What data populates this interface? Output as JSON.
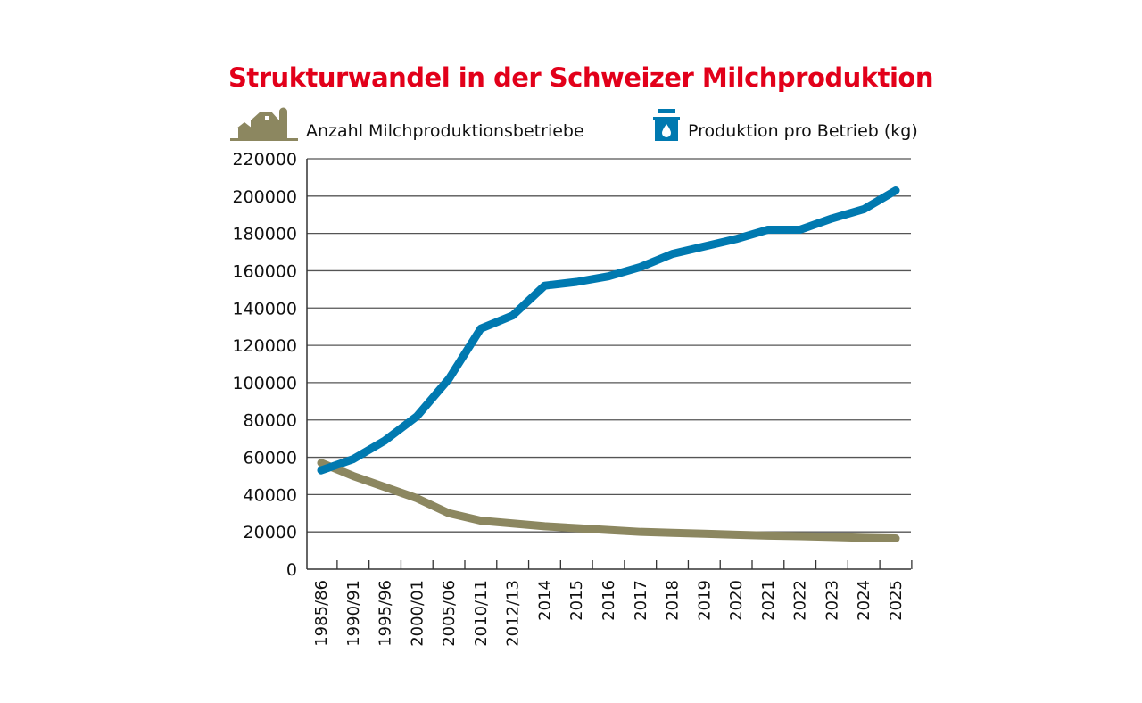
{
  "chart_data": {
    "type": "line",
    "title": "Strukturwandel in der Schweizer Milchproduktion",
    "categories": [
      "1985/86",
      "1990/91",
      "1995/96",
      "2000/01",
      "2005/06",
      "2010/11",
      "2012/13",
      "2014",
      "2015",
      "2016",
      "2017",
      "2018",
      "2019",
      "2020",
      "2021",
      "2022",
      "2023",
      "2024",
      "2025"
    ],
    "ylim": [
      0,
      220000
    ],
    "yticks": [
      0,
      20000,
      40000,
      60000,
      80000,
      100000,
      120000,
      140000,
      160000,
      180000,
      200000,
      220000
    ],
    "grid": true,
    "legend_placement": "top",
    "series": [
      {
        "name": "Anzahl Milchproduktionsbetriebe",
        "color": "#8c8760",
        "icon": "barn-icon",
        "values": [
          57000,
          50000,
          44000,
          38000,
          30000,
          26000,
          24500,
          23000,
          22000,
          21000,
          20000,
          19500,
          19000,
          18500,
          18000,
          17700,
          17300,
          16800,
          16500
        ]
      },
      {
        "name": "Produktion pro Betrieb (kg)",
        "color": "#0079b0",
        "icon": "milk-can-icon",
        "values": [
          53000,
          59000,
          69000,
          82000,
          102000,
          129000,
          136000,
          152000,
          154000,
          157000,
          162000,
          169000,
          173000,
          177000,
          182000,
          182000,
          188000,
          193000,
          203000
        ]
      }
    ]
  }
}
